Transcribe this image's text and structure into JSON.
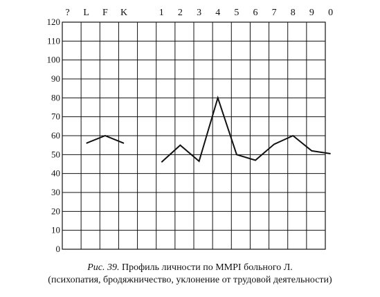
{
  "chart_data": {
    "type": "line",
    "categories": [
      "?",
      "L",
      "F",
      "K",
      "",
      "1",
      "2",
      "3",
      "4",
      "5",
      "6",
      "7",
      "8",
      "9",
      "0"
    ],
    "yticks": [
      "0",
      "10",
      "20",
      "30",
      "40",
      "50",
      "60",
      "70",
      "80",
      "90",
      "100",
      "110",
      "120"
    ],
    "ylim": [
      0,
      120
    ],
    "grid": true,
    "series": [
      {
        "values": [
          null,
          56,
          60,
          56,
          null,
          46,
          55,
          46.5,
          80,
          50,
          47,
          55.5,
          60,
          52,
          50.5
        ]
      }
    ]
  },
  "caption": {
    "prefix": "Рис. 39.",
    "title": "Профиль личности по MMPI больного Л.",
    "subtitle": "(психопатия, бродяжничество, уклонение от трудовой деятельности)"
  }
}
